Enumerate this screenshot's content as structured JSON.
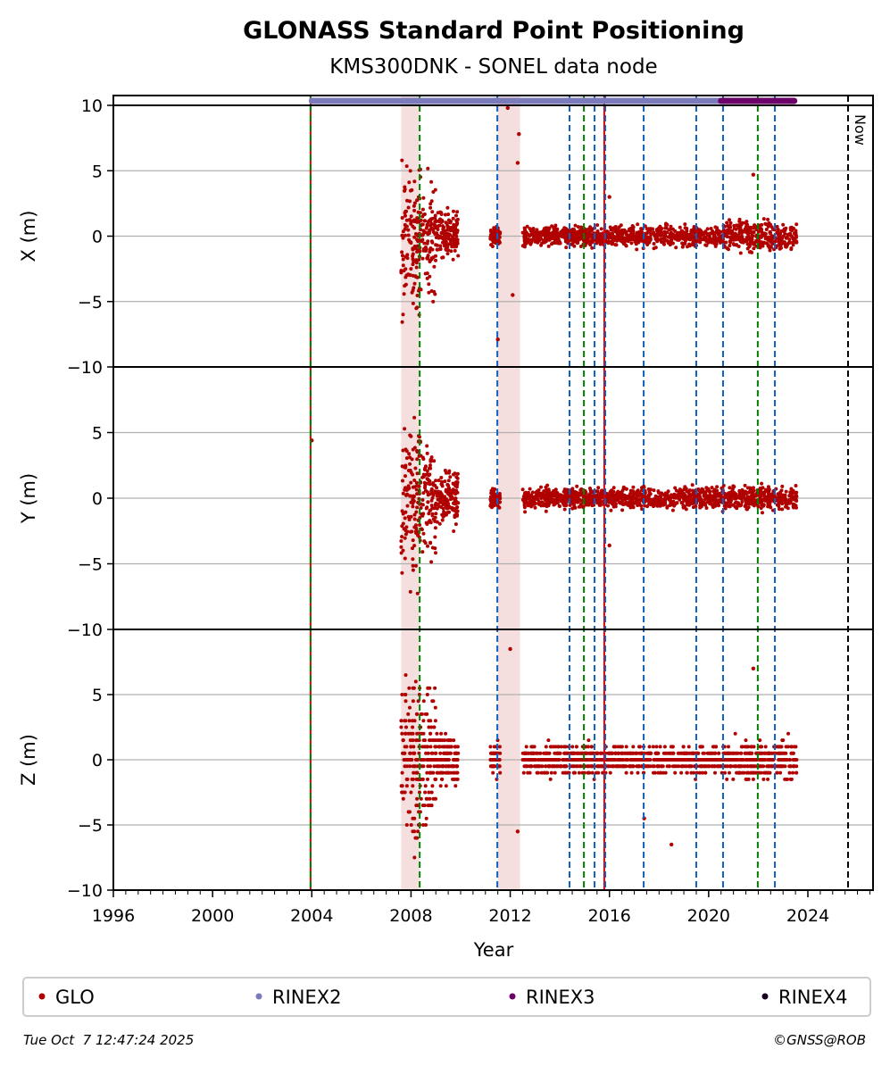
{
  "chart_data": {
    "type": "scatter",
    "title": "GLONASS Standard Point Positioning",
    "subtitle": "KMS300DNK - SONEL data node",
    "xlabel": "Year",
    "xlim": [
      1996,
      2026.63
    ],
    "x_ticks": [
      "1996",
      "2000",
      "2004",
      "2008",
      "2012",
      "2016",
      "2020",
      "2024"
    ],
    "x_tick_values": [
      1996,
      2000,
      2004,
      2008,
      2012,
      2016,
      2020,
      2024
    ],
    "panels": [
      {
        "ylabel": "X (m)",
        "ylim": [
          -10,
          10
        ]
      },
      {
        "ylabel": "Y (m)",
        "ylim": [
          -10,
          10
        ]
      },
      {
        "ylabel": "Z (m)",
        "ylim": [
          -10,
          10
        ]
      }
    ],
    "y_ticks": [
      "−10",
      "−5",
      "0",
      "5",
      "10"
    ],
    "y_tick_values": [
      -10,
      -5,
      0,
      5,
      10
    ],
    "grid": true,
    "series_glo_segments": [
      {
        "start": 2007.6,
        "end": 2008.4,
        "spread": [
          8,
          8,
          9
        ]
      },
      {
        "start": 2008.4,
        "end": 2009.0,
        "spread": [
          6,
          6,
          7
        ]
      },
      {
        "start": 2009.0,
        "end": 2009.9,
        "spread": [
          2.5,
          3,
          2.5
        ]
      },
      {
        "start": 2011.2,
        "end": 2011.6,
        "spread": [
          1,
          1,
          1.5
        ]
      },
      {
        "start": 2012.5,
        "end": 2020.5,
        "spread": [
          1.1,
          1.1,
          1.5
        ]
      },
      {
        "start": 2020.5,
        "end": 2023.55,
        "spread": [
          1.6,
          1.3,
          2
        ]
      }
    ],
    "outliers": [
      {
        "x": 2004.0,
        "panel": 1,
        "y": 4.4
      },
      {
        "x": 2011.9,
        "panel": 0,
        "y": 9.8
      },
      {
        "x": 2012.3,
        "panel": 0,
        "y": 5.6
      },
      {
        "x": 2012.35,
        "panel": 0,
        "y": 7.8
      },
      {
        "x": 2011.5,
        "panel": 0,
        "y": -7.9
      },
      {
        "x": 2012.1,
        "panel": 0,
        "y": -4.5
      },
      {
        "x": 2016.0,
        "panel": 0,
        "y": 3.0
      },
      {
        "x": 2016.0,
        "panel": 1,
        "y": -3.6
      },
      {
        "x": 2017.4,
        "panel": 2,
        "y": -4.5
      },
      {
        "x": 2018.5,
        "panel": 2,
        "y": -6.5
      },
      {
        "x": 2021.8,
        "panel": 0,
        "y": 4.7
      },
      {
        "x": 2021.8,
        "panel": 2,
        "y": 7.0
      },
      {
        "x": 2012.0,
        "panel": 2,
        "y": 8.5
      },
      {
        "x": 2012.3,
        "panel": 2,
        "y": -5.5
      }
    ],
    "event_lines": [
      {
        "x": 2003.95,
        "style": "solid",
        "color": "#e00000"
      },
      {
        "x": 2003.95,
        "style": "dashed",
        "color": "#008000"
      },
      {
        "x": 2008.35,
        "style": "dashed",
        "color": "#008000"
      },
      {
        "x": 2011.48,
        "style": "dashed",
        "color": "#1060c0"
      },
      {
        "x": 2014.39,
        "style": "dashed",
        "color": "#1060c0"
      },
      {
        "x": 2014.97,
        "style": "dashed",
        "color": "#008000"
      },
      {
        "x": 2015.4,
        "style": "dashed",
        "color": "#1060c0"
      },
      {
        "x": 2015.79,
        "style": "solid",
        "color": "#e00000"
      },
      {
        "x": 2015.83,
        "style": "dashed",
        "color": "#1060c0"
      },
      {
        "x": 2017.38,
        "style": "dashed",
        "color": "#1060c0"
      },
      {
        "x": 2019.5,
        "style": "dashed",
        "color": "#1060c0"
      },
      {
        "x": 2020.58,
        "style": "dashed",
        "color": "#1060c0"
      },
      {
        "x": 2021.98,
        "style": "dashed",
        "color": "#008000"
      },
      {
        "x": 2022.67,
        "style": "dashed",
        "color": "#1060c0"
      }
    ],
    "now_line": {
      "x": 2025.62,
      "label": "Now"
    },
    "shaded_periods": [
      [
        2007.6,
        2008.35
      ],
      [
        2011.5,
        2012.4
      ]
    ],
    "availability_bars": [
      {
        "name": "RINEX2",
        "start": 2004.0,
        "end": 2020.6,
        "color": "#7b7bbb"
      },
      {
        "name": "RINEX3",
        "start": 2020.5,
        "end": 2023.45,
        "color": "#6a0068"
      }
    ],
    "legend": [
      {
        "label": "GLO",
        "color": "#b00000"
      },
      {
        "label": "RINEX2",
        "color": "#7b7bbb"
      },
      {
        "label": "RINEX3",
        "color": "#6a0068"
      },
      {
        "label": "RINEX4",
        "color": "#1a0020"
      }
    ],
    "legend_position": "bottom"
  },
  "footer": {
    "timestamp": "Tue Oct  7 12:47:24 2025",
    "credit": "©GNSS@ROB"
  }
}
